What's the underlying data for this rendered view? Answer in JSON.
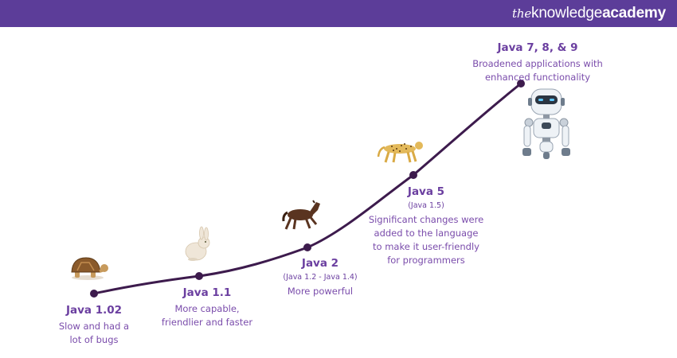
{
  "header": {
    "logo_prefix": "the",
    "logo_word": "knowledge",
    "logo_suffix": "academy"
  },
  "colors": {
    "header_bg": "#5c3d99",
    "line": "#3d1b4d",
    "text": "#6b3fa0"
  },
  "stages": [
    {
      "title": "Java 1.02",
      "subtitle": "",
      "desc_lines": [
        "Slow and had a",
        "lot of bugs"
      ],
      "icon": "tortoise-icon"
    },
    {
      "title": "Java 1.1",
      "subtitle": "",
      "desc_lines": [
        "More capable,",
        "friendlier and faster"
      ],
      "icon": "rabbit-icon"
    },
    {
      "title": "Java 2",
      "subtitle": "(Java 1.2 - Java 1.4)",
      "desc_lines": [
        "More powerful"
      ],
      "icon": "horse-icon"
    },
    {
      "title": "Java 5",
      "subtitle": "(Java 1.5)",
      "desc_lines": [
        "Significant changes were",
        "added to the language",
        "to make it user-friendly",
        "for programmers"
      ],
      "icon": "cheetah-icon"
    },
    {
      "title": "Java 7, 8, & 9",
      "subtitle": "",
      "desc_lines": [
        "Broadened applications with",
        "enhanced functionality"
      ],
      "icon": "robot-icon"
    }
  ]
}
